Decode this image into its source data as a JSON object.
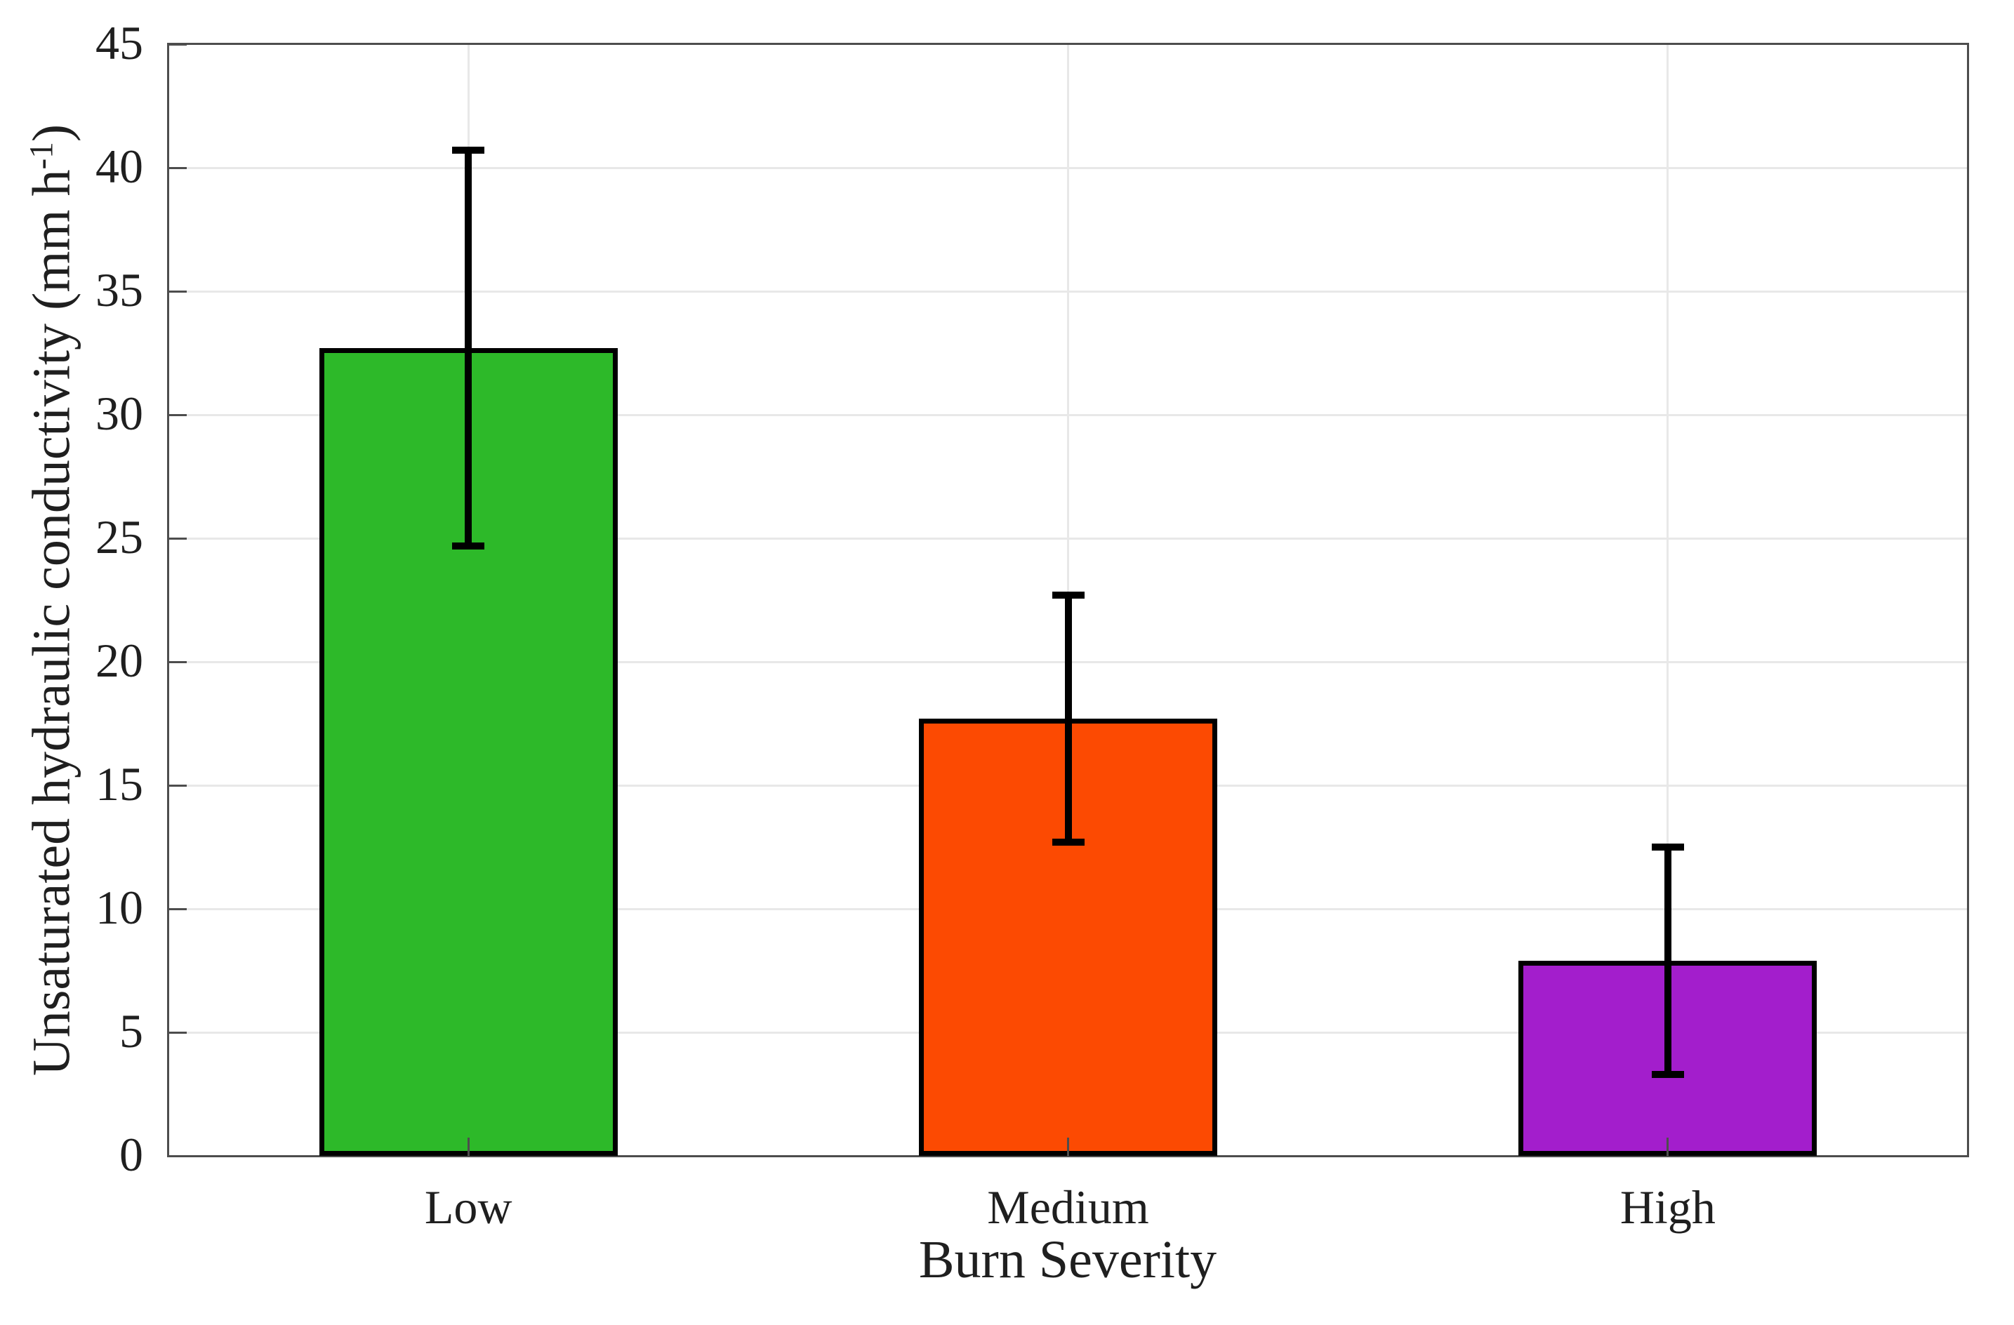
{
  "figure": {
    "background": "#ffffff"
  },
  "chart_data": {
    "type": "bar",
    "title": "",
    "xlabel": "Burn Severity",
    "ylabel": "Unsaturated hydraulic conductivity (mm h⁻¹)",
    "ylabel_parts": {
      "prefix": "Unsaturated hydraulic conductivity (mm h",
      "superscript": "-1",
      "suffix": ")"
    },
    "categories": [
      "Low",
      "Medium",
      "High"
    ],
    "values": [
      32.7,
      17.7,
      7.9
    ],
    "error_upper": [
      40.7,
      22.7,
      12.5
    ],
    "error_lower": [
      24.7,
      12.7,
      3.3
    ],
    "bar_colors": [
      "#2DB929",
      "#FC4A02",
      "#A31ECC"
    ],
    "bar_edge_color": "#000000",
    "error_bar_color": "#000000",
    "ylim": [
      0,
      45
    ],
    "yticks": [
      0,
      5,
      10,
      15,
      20,
      25,
      30,
      35,
      40,
      45
    ],
    "grid": true,
    "legend_position": "none"
  },
  "style_colors": {
    "axis": "#4d4d4d",
    "grid": "#e8e8e8",
    "text": "#1f1f1f"
  }
}
